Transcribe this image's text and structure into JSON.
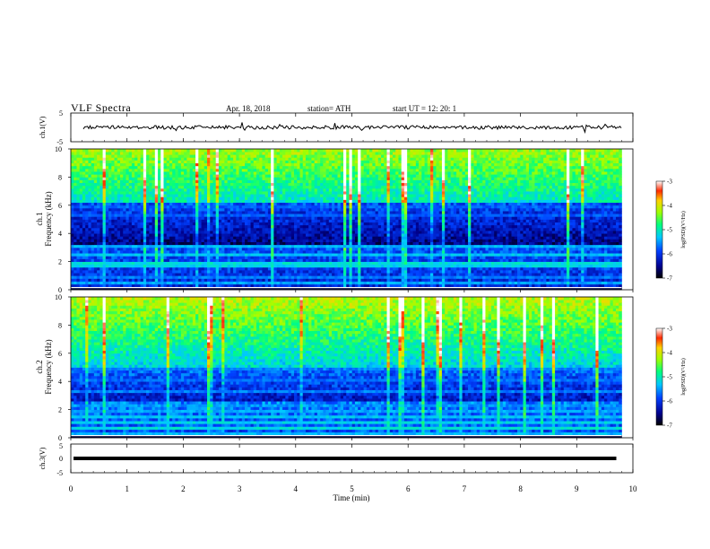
{
  "header": {
    "title": "VLF  Spectra",
    "date": "Apr. 18, 2018",
    "station": "station= ATH",
    "start": "start  UT  =    12: 20: 1"
  },
  "chart_data": [
    {
      "type": "line",
      "name": "ch1-waveform",
      "ylabel": "ch.1(V)",
      "ylim": [
        -5,
        5
      ],
      "yticks": [
        "5",
        "-5"
      ],
      "baseline": 0,
      "amplitude_typical": 0.8
    },
    {
      "type": "heatmap",
      "name": "ch1-spectrogram",
      "ylabel": "Frequency (kHz)",
      "ylabel_prefix": "ch.1",
      "ylim": [
        0,
        10
      ],
      "yticks": [
        "0",
        "2",
        "4",
        "6",
        "8",
        "10"
      ],
      "colorbar": {
        "label": "log(PSD)(V²/Hz)",
        "range": [
          -7,
          -3
        ],
        "ticks": [
          "-3",
          "-4",
          "-5",
          "-6",
          "-7"
        ]
      }
    },
    {
      "type": "heatmap",
      "name": "ch2-spectrogram",
      "ylabel": "Frequency (kHz)",
      "ylabel_prefix": "ch.2",
      "ylim": [
        0,
        10
      ],
      "yticks": [
        "0",
        "2",
        "4",
        "6",
        "8",
        "10"
      ],
      "colorbar": {
        "label": "log(PSD)(V²/Hz)",
        "range": [
          -7,
          -3
        ],
        "ticks": [
          "-3",
          "-4",
          "-5",
          "-6",
          "-7"
        ]
      }
    },
    {
      "type": "line",
      "name": "ch3-waveform",
      "ylabel": "ch.3(V)",
      "ylim": [
        -5,
        5
      ],
      "yticks": [
        "5",
        "0",
        "-5"
      ],
      "baseline": 0
    }
  ],
  "xaxis": {
    "label": "Time  (min)",
    "range": [
      0,
      10
    ],
    "ticks": [
      "0",
      "1",
      "2",
      "3",
      "4",
      "5",
      "6",
      "7",
      "8",
      "9",
      "10"
    ],
    "data_end": 9.8
  }
}
